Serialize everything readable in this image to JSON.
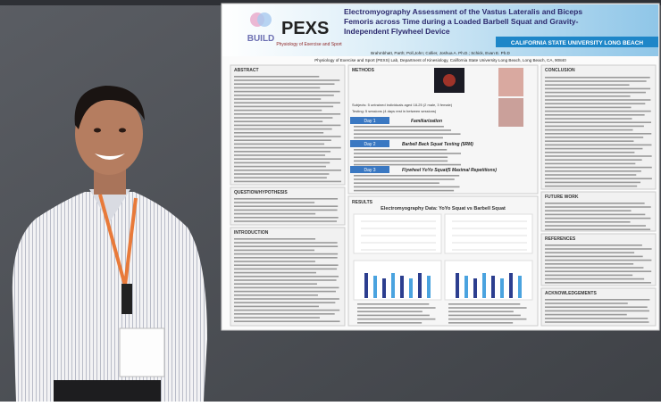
{
  "poster": {
    "logo": {
      "build": "BUILD",
      "lab": "PEXS",
      "lab_full": "Physiology of Exercise and Sport"
    },
    "title_lines": [
      "Electromyography Assessment of the Vastus Lateralis and Biceps",
      "Femoris across Time during a Loaded Barbell Squat and Gravity-",
      "Independent Flywheel Device"
    ],
    "university": "CALIFORNIA STATE UNIVERSITY LONG BEACH",
    "authors": "Brahmbhatt, Parth; Poll,John; Collier, Joshua A. Ph.D.; Schick, Evan E. Ph.D",
    "affiliation": "Physiology of Exercise and Sport (PEXS) Lab, Department of Kinesiology, California State University Long Beach, Long Beach, CA, 90840",
    "sections": {
      "abstract": "ABSTRACT",
      "question": "QUESTION/HYPOTHESIS",
      "introduction": "INTRODUCTION",
      "methods": "METHODS",
      "results": "RESULTS",
      "conclusion": "CONCLUSION",
      "future_work": "FUTURE WORK",
      "references": "REFERENCES",
      "acknowledgements": "ACKNOWLEDGEMENTS"
    },
    "methods": {
      "subjects": "Subjects: 5 untrained individuals aged 18-25 (2 male, 3 female)",
      "testing": "Testing: 5 sessions (4 days rest in between sessions)",
      "days": [
        {
          "day": "Day 1",
          "label": "Familiarization"
        },
        {
          "day": "Day 2",
          "label": "Barbell Back Squat Testing (5RM)"
        },
        {
          "day": "Day 3",
          "label": "Flywheel YoYo Squat(5 Maximal Repetitions)"
        }
      ]
    },
    "results_title": "Electromyography Data: YoYo Squat vs Barbell Squat"
  }
}
